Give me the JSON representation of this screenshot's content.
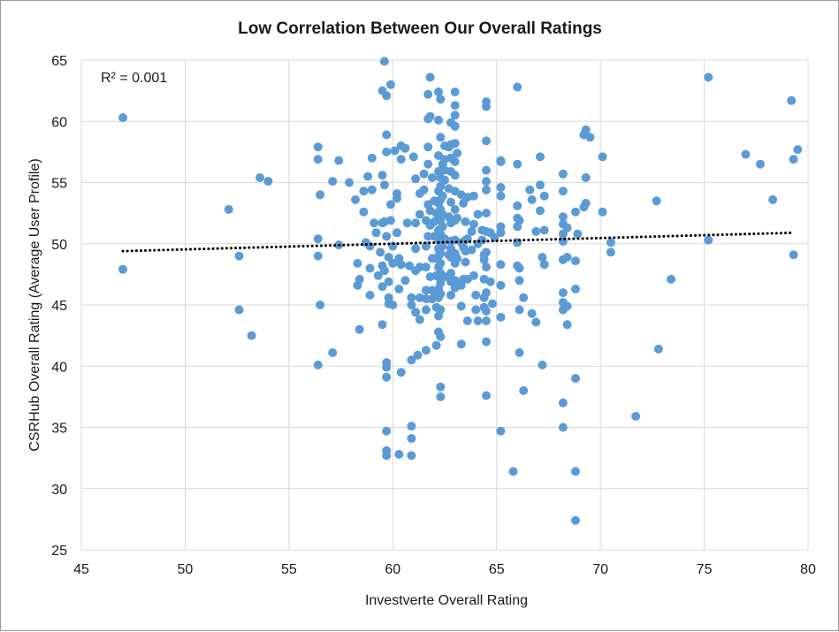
{
  "chart_data": {
    "type": "scatter",
    "title": "Low Correlation Between Our Overall Ratings",
    "xlabel": "Investverte Overall Rating",
    "ylabel": "CSRHub Overall Rating (Average User Profile)",
    "xlim": [
      45,
      80
    ],
    "ylim": [
      25,
      65
    ],
    "xticks": [
      45,
      50,
      55,
      60,
      65,
      70,
      75,
      80
    ],
    "yticks": [
      25,
      30,
      35,
      40,
      45,
      50,
      55,
      60,
      65
    ],
    "grid": true,
    "annotation": "R² = 0.001",
    "point_color": "#5b9bd5",
    "trendline": {
      "style": "dotted",
      "color": "#000000",
      "x": [
        47,
        79.3
      ],
      "y": [
        49.4,
        50.9
      ]
    },
    "points": [
      [
        47,
        60.3
      ],
      [
        47,
        47.9
      ],
      [
        52.1,
        52.8
      ],
      [
        52.6,
        49
      ],
      [
        52.6,
        44.6
      ],
      [
        53.2,
        42.5
      ],
      [
        53.6,
        55.4
      ],
      [
        54,
        55.1
      ],
      [
        56.4,
        57.9
      ],
      [
        56.4,
        56.9
      ],
      [
        56.4,
        50.4
      ],
      [
        56.4,
        49
      ],
      [
        56.4,
        40.1
      ],
      [
        56.5,
        54
      ],
      [
        56.5,
        45
      ],
      [
        57.1,
        55.1
      ],
      [
        57.1,
        41.1
      ],
      [
        57.4,
        56.8
      ],
      [
        57.4,
        49.9
      ],
      [
        57.9,
        55
      ],
      [
        58.2,
        53.6
      ],
      [
        58.3,
        48.4
      ],
      [
        58.3,
        46.6
      ],
      [
        58.4,
        47.1
      ],
      [
        58.4,
        43
      ],
      [
        58.6,
        54.3
      ],
      [
        58.6,
        52.6
      ],
      [
        58.7,
        50.1
      ],
      [
        58.8,
        55.5
      ],
      [
        58.9,
        49.8
      ],
      [
        58.9,
        48
      ],
      [
        58.9,
        45.8
      ],
      [
        59,
        57
      ],
      [
        59,
        54.4
      ],
      [
        59.1,
        51.7
      ],
      [
        59.2,
        50.9
      ],
      [
        59.3,
        47.4
      ],
      [
        59.4,
        49.3
      ],
      [
        59.5,
        55.6
      ],
      [
        59.5,
        51.7
      ],
      [
        59.5,
        48.2
      ],
      [
        59.5,
        46.5
      ],
      [
        59.5,
        43.4
      ],
      [
        59.5,
        62.5
      ],
      [
        59.6,
        64.9
      ],
      [
        59.6,
        54.8
      ],
      [
        59.6,
        51.8
      ],
      [
        59.6,
        47.8
      ],
      [
        59.7,
        62.1
      ],
      [
        59.7,
        58.9
      ],
      [
        59.7,
        57.5
      ],
      [
        59.7,
        50.6
      ],
      [
        59.8,
        48.9
      ],
      [
        59.8,
        46.9
      ],
      [
        59.8,
        45.6
      ],
      [
        59.8,
        45.1
      ],
      [
        59.7,
        40.3
      ],
      [
        59.7,
        39.9
      ],
      [
        59.7,
        39.1
      ],
      [
        59.7,
        34.7
      ],
      [
        59.7,
        33.1
      ],
      [
        59.7,
        32.7
      ],
      [
        59.9,
        63
      ],
      [
        59.9,
        53.2
      ],
      [
        59.9,
        51.9
      ],
      [
        60,
        49.8
      ],
      [
        60,
        48.4
      ],
      [
        60,
        45
      ],
      [
        60.1,
        57.6
      ],
      [
        60.2,
        54.1
      ],
      [
        60.2,
        53.7
      ],
      [
        60.2,
        50.9
      ],
      [
        60.3,
        48.8
      ],
      [
        60.3,
        46.3
      ],
      [
        60.3,
        32.8
      ],
      [
        60.4,
        58
      ],
      [
        60.4,
        56.9
      ],
      [
        60.4,
        48.3
      ],
      [
        60.4,
        39.5
      ],
      [
        60.6,
        57.8
      ],
      [
        60.6,
        47
      ],
      [
        60.7,
        51.7
      ],
      [
        60.8,
        48.2
      ],
      [
        60.9,
        45.6
      ],
      [
        60.9,
        45
      ],
      [
        60.9,
        40.5
      ],
      [
        60.9,
        35.1
      ],
      [
        60.9,
        34.1
      ],
      [
        60.9,
        32.7
      ],
      [
        61,
        57.1
      ],
      [
        61.1,
        55.3
      ],
      [
        61.1,
        51.7
      ],
      [
        61.1,
        49.6
      ],
      [
        61.1,
        47.8
      ],
      [
        61.1,
        44.4
      ],
      [
        61.2,
        40.9
      ],
      [
        61.3,
        54.1
      ],
      [
        61.3,
        52.4
      ],
      [
        61.3,
        48.1
      ],
      [
        61.3,
        45.6
      ],
      [
        61.3,
        43.8
      ],
      [
        61.5,
        55.7
      ],
      [
        61.5,
        54.4
      ],
      [
        61.6,
        51.9
      ],
      [
        61.6,
        49.8
      ],
      [
        61.6,
        48.1
      ],
      [
        61.6,
        46.2
      ],
      [
        61.6,
        45.5
      ],
      [
        61.6,
        44.6
      ],
      [
        61.6,
        41.3
      ],
      [
        61.7,
        62.2
      ],
      [
        61.7,
        60.2
      ],
      [
        61.7,
        57.9
      ],
      [
        61.7,
        56.5
      ],
      [
        61.7,
        53.2
      ],
      [
        61.7,
        50.6
      ],
      [
        61.8,
        63.6
      ],
      [
        61.8,
        60.4
      ],
      [
        61.8,
        52.7
      ],
      [
        61.8,
        51.5
      ],
      [
        61.8,
        47.3
      ],
      [
        61.9,
        55.4
      ],
      [
        61.9,
        48.8
      ],
      [
        61.9,
        46.2
      ],
      [
        61.9,
        45.5
      ],
      [
        62,
        53.5
      ],
      [
        62,
        51.8
      ],
      [
        62,
        50.6
      ],
      [
        62.1,
        52.5
      ],
      [
        62.1,
        48.8
      ],
      [
        62.1,
        47.4
      ],
      [
        62.1,
        46.1
      ],
      [
        62.1,
        44.8
      ],
      [
        62.1,
        41.7
      ],
      [
        62.2,
        62.4
      ],
      [
        62.2,
        60.1
      ],
      [
        62.2,
        57.2
      ],
      [
        62.2,
        55.9
      ],
      [
        62.2,
        54.3
      ],
      [
        62.2,
        53.3
      ],
      [
        62.2,
        52.3
      ],
      [
        62.2,
        51.1
      ],
      [
        62.2,
        50.4
      ],
      [
        62.2,
        49.6
      ],
      [
        62.2,
        49
      ],
      [
        62.2,
        48.1
      ],
      [
        62.2,
        47.3
      ],
      [
        62.2,
        46.3
      ],
      [
        62.2,
        45.6
      ],
      [
        62.2,
        44.1
      ],
      [
        62.2,
        42.8
      ],
      [
        62.3,
        61.8
      ],
      [
        62.3,
        58.7
      ],
      [
        62.3,
        55.4
      ],
      [
        62.3,
        54.7
      ],
      [
        62.3,
        53.6
      ],
      [
        62.3,
        52.8
      ],
      [
        62.3,
        51.9
      ],
      [
        62.3,
        50.8
      ],
      [
        62.3,
        50.1
      ],
      [
        62.3,
        49.2
      ],
      [
        62.3,
        48.4
      ],
      [
        62.3,
        47.6
      ],
      [
        62.3,
        46.8
      ],
      [
        62.3,
        45.9
      ],
      [
        62.3,
        44.6
      ],
      [
        62.3,
        42.4
      ],
      [
        62.3,
        38.3
      ],
      [
        62.3,
        37.5
      ],
      [
        62.4,
        56.5
      ],
      [
        62.4,
        53.9
      ],
      [
        62.4,
        52.4
      ],
      [
        62.4,
        51.4
      ],
      [
        62.4,
        49.8
      ],
      [
        62.5,
        58
      ],
      [
        62.5,
        56.9
      ],
      [
        62.5,
        56
      ],
      [
        62.5,
        55.2
      ],
      [
        62.5,
        50.4
      ],
      [
        62.5,
        47.3
      ],
      [
        62.7,
        57.9
      ],
      [
        62.7,
        54.5
      ],
      [
        62.7,
        52.2
      ],
      [
        62.7,
        49.1
      ],
      [
        62.8,
        59.9
      ],
      [
        62.8,
        58.1
      ],
      [
        62.8,
        57
      ],
      [
        62.8,
        55.9
      ],
      [
        62.8,
        53.4
      ],
      [
        62.8,
        51.7
      ],
      [
        62.8,
        50.2
      ],
      [
        62.8,
        49.6
      ],
      [
        62.8,
        48.9
      ],
      [
        62.8,
        47.6
      ],
      [
        62.8,
        46.9
      ],
      [
        62.8,
        45.8
      ],
      [
        63,
        62.4
      ],
      [
        63,
        61.3
      ],
      [
        63,
        60.5
      ],
      [
        63,
        59.6
      ],
      [
        63,
        58.2
      ],
      [
        63,
        56.7
      ],
      [
        63,
        55.6
      ],
      [
        63,
        54.3
      ],
      [
        63,
        52.8
      ],
      [
        63,
        51.9
      ],
      [
        63,
        50.3
      ],
      [
        63,
        49.2
      ],
      [
        63,
        48.4
      ],
      [
        63,
        47
      ],
      [
        63,
        46.4
      ],
      [
        63.1,
        57.4
      ],
      [
        63.1,
        52.1
      ],
      [
        63.1,
        48.8
      ],
      [
        63.3,
        54
      ],
      [
        63.3,
        50.1
      ],
      [
        63.3,
        46.6
      ],
      [
        63.3,
        44.9
      ],
      [
        63.3,
        41.8
      ],
      [
        63.4,
        53.3
      ],
      [
        63.4,
        49.7
      ],
      [
        63.4,
        47.1
      ],
      [
        63.5,
        51.8
      ],
      [
        63.5,
        50.3
      ],
      [
        63.5,
        49.4
      ],
      [
        63.5,
        48.5
      ],
      [
        63.6,
        53.8
      ],
      [
        63.6,
        50.4
      ],
      [
        63.6,
        47.1
      ],
      [
        63.6,
        43.7
      ],
      [
        63.8,
        51
      ],
      [
        63.8,
        49.5
      ],
      [
        63.9,
        53.9
      ],
      [
        63.9,
        51.6
      ],
      [
        63.9,
        47.4
      ],
      [
        64,
        45.8
      ],
      [
        64,
        44.6
      ],
      [
        64.1,
        52.4
      ],
      [
        64.1,
        50
      ],
      [
        64.1,
        43.7
      ],
      [
        64.3,
        51.1
      ],
      [
        64.3,
        50.3
      ],
      [
        64.4,
        49.1
      ],
      [
        64.4,
        48.7
      ],
      [
        64.4,
        47.1
      ],
      [
        64.4,
        45.6
      ],
      [
        64.4,
        44.8
      ],
      [
        64.5,
        61.6
      ],
      [
        64.5,
        61.2
      ],
      [
        64.5,
        58.4
      ],
      [
        64.5,
        56
      ],
      [
        64.5,
        55.1
      ],
      [
        64.5,
        54.4
      ],
      [
        64.5,
        52.5
      ],
      [
        64.5,
        51
      ],
      [
        64.5,
        49.3
      ],
      [
        64.5,
        48.1
      ],
      [
        64.5,
        46
      ],
      [
        64.5,
        44.5
      ],
      [
        64.5,
        43.7
      ],
      [
        64.5,
        42
      ],
      [
        64.5,
        37.6
      ],
      [
        64.7,
        50.9
      ],
      [
        64.7,
        46.9
      ],
      [
        64.8,
        45.1
      ],
      [
        64.9,
        50.5
      ],
      [
        65.2,
        56.8
      ],
      [
        65.2,
        56.7
      ],
      [
        65.2,
        54.6
      ],
      [
        65.2,
        53.9
      ],
      [
        65.2,
        51.4
      ],
      [
        65.2,
        50.9
      ],
      [
        65.2,
        48.3
      ],
      [
        65.2,
        46.6
      ],
      [
        65.2,
        44
      ],
      [
        65.2,
        34.7
      ],
      [
        65.8,
        31.4
      ],
      [
        66,
        62.8
      ],
      [
        66,
        56.5
      ],
      [
        66,
        53.1
      ],
      [
        66,
        52.1
      ],
      [
        66,
        51.4
      ],
      [
        66,
        50.1
      ],
      [
        66,
        48.2
      ],
      [
        66.1,
        51.9
      ],
      [
        66.1,
        48
      ],
      [
        66.1,
        47
      ],
      [
        66.1,
        44.6
      ],
      [
        66.1,
        41.1
      ],
      [
        66.3,
        45.6
      ],
      [
        66.3,
        38
      ],
      [
        66.6,
        54.4
      ],
      [
        66.7,
        53.6
      ],
      [
        66.7,
        44.3
      ],
      [
        66.9,
        51
      ],
      [
        66.9,
        43.6
      ],
      [
        67.1,
        57.1
      ],
      [
        67.1,
        54.8
      ],
      [
        67.1,
        52.7
      ],
      [
        67.2,
        48.9
      ],
      [
        67.2,
        40.1
      ],
      [
        67.3,
        53.9
      ],
      [
        67.3,
        51.1
      ],
      [
        67.3,
        48.3
      ],
      [
        68.2,
        55.7
      ],
      [
        68.2,
        54.3
      ],
      [
        68.2,
        52.2
      ],
      [
        68.2,
        51.6
      ],
      [
        68.2,
        50.8
      ],
      [
        68.2,
        50.2
      ],
      [
        68.2,
        48.7
      ],
      [
        68.2,
        46
      ],
      [
        68.2,
        45.2
      ],
      [
        68.2,
        44.6
      ],
      [
        68.2,
        37
      ],
      [
        68.2,
        35
      ],
      [
        68.4,
        51.3
      ],
      [
        68.4,
        48.9
      ],
      [
        68.4,
        44.9
      ],
      [
        68.4,
        43.4
      ],
      [
        68.8,
        52.6
      ],
      [
        68.8,
        48.6
      ],
      [
        68.8,
        46.3
      ],
      [
        68.8,
        39
      ],
      [
        68.8,
        31.4
      ],
      [
        68.8,
        27.4
      ],
      [
        68.9,
        50.8
      ],
      [
        69.2,
        53
      ],
      [
        69.2,
        58.9
      ],
      [
        69.3,
        59.3
      ],
      [
        69.3,
        55.4
      ],
      [
        69.3,
        53.3
      ],
      [
        69.5,
        58.7
      ],
      [
        70.1,
        57.1
      ],
      [
        70.1,
        52.6
      ],
      [
        70.5,
        50.1
      ],
      [
        70.5,
        49.3
      ],
      [
        71.7,
        35.9
      ],
      [
        72.7,
        53.5
      ],
      [
        72.8,
        41.4
      ],
      [
        73.4,
        47.1
      ],
      [
        75.2,
        63.6
      ],
      [
        75.2,
        50.3
      ],
      [
        77,
        57.3
      ],
      [
        77.7,
        56.5
      ],
      [
        78.3,
        53.6
      ],
      [
        79.2,
        61.7
      ],
      [
        79.3,
        56.9
      ],
      [
        79.3,
        49.1
      ],
      [
        79.5,
        57.7
      ]
    ]
  }
}
